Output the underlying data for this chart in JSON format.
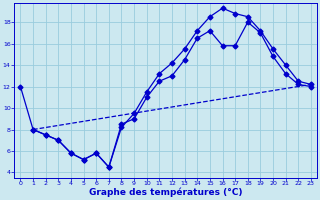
{
  "xlabel": "Graphe des températures (°C)",
  "bg_color": "#cce8f0",
  "grid_color": "#99ccdd",
  "line_color": "#0000cc",
  "xlim": [
    -0.5,
    23.5
  ],
  "ylim": [
    3.5,
    19.8
  ],
  "yticks": [
    4,
    6,
    8,
    10,
    12,
    14,
    16,
    18
  ],
  "xticks": [
    0,
    1,
    2,
    3,
    4,
    5,
    6,
    7,
    8,
    9,
    10,
    11,
    12,
    13,
    14,
    15,
    16,
    17,
    18,
    19,
    20,
    21,
    22,
    23
  ],
  "line1_x": [
    0,
    1,
    2,
    3,
    4,
    5,
    6,
    7,
    8,
    9,
    10,
    11,
    12,
    13,
    14,
    15,
    16,
    17,
    18,
    19,
    20,
    21,
    22,
    23
  ],
  "line1_y": [
    12,
    8,
    7.5,
    7,
    5.8,
    5.2,
    5.8,
    4.5,
    8.2,
    9.5,
    11.5,
    13.2,
    14.2,
    15.5,
    17.2,
    18.5,
    19.3,
    18.8,
    18.5,
    17.2,
    15.5,
    14.0,
    12.5,
    12.2
  ],
  "line2_x": [
    1,
    2,
    3,
    4,
    5,
    6,
    7,
    8,
    9,
    10,
    11,
    12,
    13,
    14,
    15,
    16,
    17,
    18,
    19,
    20,
    21,
    22,
    23
  ],
  "line2_y": [
    8,
    7.5,
    7.0,
    5.8,
    5.2,
    5.8,
    4.5,
    8.5,
    9.0,
    11.0,
    12.5,
    13.0,
    14.5,
    16.5,
    17.2,
    15.8,
    15.8,
    18.0,
    17.0,
    14.8,
    13.2,
    12.2,
    12.0
  ],
  "line3_x": [
    1,
    23
  ],
  "line3_y": [
    8,
    12.2
  ],
  "markersize": 2.5,
  "linewidth": 0.9,
  "xlabel_fontsize": 6.5,
  "tick_fontsize": 4.5
}
